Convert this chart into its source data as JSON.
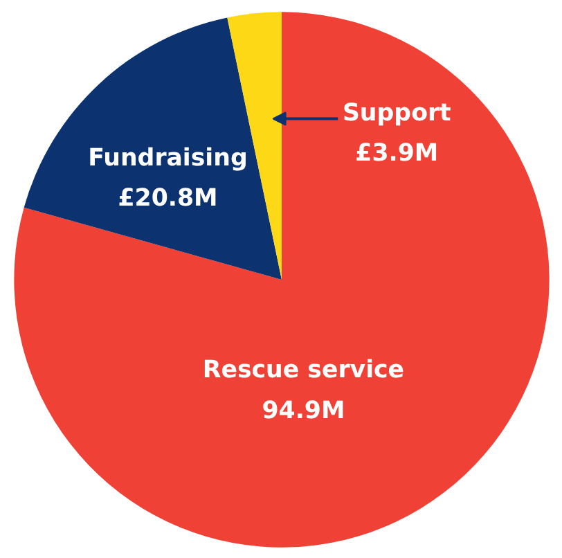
{
  "chart_data": {
    "type": "pie",
    "categories": [
      "Rescue service",
      "Fundraising",
      "Support"
    ],
    "values": [
      94.9,
      20.8,
      3.9
    ],
    "colors": [
      "#ef4136",
      "#0d3270",
      "#fdd816"
    ],
    "value_labels": [
      "94.9M",
      "£20.8M",
      "£3.9M"
    ]
  }
}
